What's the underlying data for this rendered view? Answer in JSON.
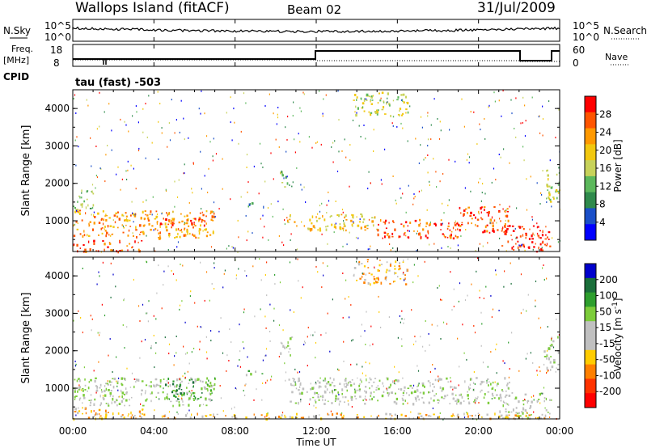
{
  "header": {
    "site": "Wallops Island (fitACF)",
    "beam": "Beam 02",
    "date": "31/Jul/2009"
  },
  "sky_panel": {
    "left_label": "N.Sky",
    "left_ticks": [
      "10^5",
      "10^0"
    ],
    "right_ticks": [
      "10^5",
      "10^0"
    ],
    "right_label": "N.Search"
  },
  "freq_panel": {
    "left_label_1": "Freq.",
    "left_label_2": "[MHz]",
    "left_ticks": [
      "18",
      "8"
    ],
    "right_ticks": [
      "60",
      "0"
    ],
    "right_label": "Nave",
    "cpid_label": "CPID",
    "mode_label": "tau (fast) -503"
  },
  "colors": {
    "power": [
      "#0000ff",
      "#1a4fc8",
      "#2f8a4c",
      "#5cb85c",
      "#c7d25a",
      "#f2c80f",
      "#ff9900",
      "#ff5500",
      "#ff0000"
    ],
    "velocity": [
      "#0000cc",
      "#1a6e3a",
      "#2d9e2d",
      "#7ccc3a",
      "#c0c0c0",
      "#c0c0c0",
      "#ffcc00",
      "#ff8000",
      "#ff3300",
      "#ff0000"
    ]
  },
  "chart_data": [
    {
      "type": "heatmap",
      "name": "power",
      "ylabel": "Slant Range [km]",
      "ylim": [
        180,
        4500
      ],
      "yticks": [
        "1000",
        "2000",
        "3000",
        "4000"
      ],
      "xlim_hours": [
        0,
        24
      ],
      "colorbar_label": "Power [dB]",
      "colorbar_ticks": [
        "28",
        "24",
        "20",
        "16",
        "12",
        "8",
        "4"
      ],
      "bands": [
        {
          "t0": 0.0,
          "t1": 7.0,
          "r0": 550,
          "r1": 1300,
          "level": 6
        },
        {
          "t0": 0.0,
          "t1": 3.5,
          "r0": 200,
          "r1": 500,
          "level": 7
        },
        {
          "t0": 0.0,
          "t1": 1.0,
          "r0": 1300,
          "r1": 1900,
          "level": 3
        },
        {
          "t0": 3.5,
          "t1": 6.5,
          "r0": 900,
          "r1": 1100,
          "level": 7
        },
        {
          "t0": 8.5,
          "t1": 9.5,
          "r0": 1350,
          "r1": 1500,
          "level": 2
        },
        {
          "t0": 10.2,
          "t1": 10.8,
          "r0": 1900,
          "r1": 2400,
          "level": 3
        },
        {
          "t0": 10.5,
          "t1": 15.0,
          "r0": 750,
          "r1": 1200,
          "level": 5
        },
        {
          "t0": 15.0,
          "t1": 19.0,
          "r0": 550,
          "r1": 1050,
          "level": 7
        },
        {
          "t0": 19.0,
          "t1": 21.5,
          "r0": 700,
          "r1": 1400,
          "level": 7
        },
        {
          "t0": 21.0,
          "t1": 23.5,
          "r0": 200,
          "r1": 900,
          "level": 8
        },
        {
          "t0": 23.2,
          "t1": 24.0,
          "r0": 1500,
          "r1": 2400,
          "level": 4
        },
        {
          "t0": 13.8,
          "t1": 16.5,
          "r0": 3800,
          "r1": 4450,
          "level": 4
        }
      ]
    },
    {
      "type": "heatmap",
      "name": "velocity",
      "ylabel": "Slant Range [km]",
      "ylim": [
        180,
        4500
      ],
      "yticks": [
        "1000",
        "2000",
        "3000",
        "4000"
      ],
      "xlabel": "Time UT",
      "xticks": [
        "00:00",
        "04:00",
        "08:00",
        "12:00",
        "16:00",
        "20:00",
        "00:00"
      ],
      "xlim_hours": [
        0,
        24
      ],
      "colorbar_label": "Velocity [m s^-1]",
      "colorbar_ticks": [
        "200",
        "100",
        "50",
        "15",
        "-15",
        "-50",
        "-100",
        "-200"
      ],
      "bands": [
        {
          "t0": 0.0,
          "t1": 7.0,
          "r0": 550,
          "r1": 1300,
          "level": 4
        },
        {
          "t0": 0.0,
          "t1": 3.5,
          "r0": 200,
          "r1": 500,
          "level": 6
        },
        {
          "t0": 4.5,
          "t1": 7.0,
          "r0": 700,
          "r1": 1300,
          "level": 2
        },
        {
          "t0": 8.5,
          "t1": 9.5,
          "r0": 1350,
          "r1": 1500,
          "level": 3
        },
        {
          "t0": 10.2,
          "t1": 10.8,
          "r0": 1900,
          "r1": 2400,
          "level": 4
        },
        {
          "t0": 10.5,
          "t1": 21.5,
          "r0": 600,
          "r1": 1300,
          "level": 4
        },
        {
          "t0": 21.0,
          "t1": 23.5,
          "r0": 200,
          "r1": 900,
          "level": 4
        },
        {
          "t0": 23.2,
          "t1": 24.0,
          "r0": 1500,
          "r1": 2400,
          "level": 4
        },
        {
          "t0": 3.0,
          "t1": 23.5,
          "r0": 200,
          "r1": 350,
          "level": 6
        },
        {
          "t0": 13.8,
          "t1": 16.5,
          "r0": 3800,
          "r1": 4450,
          "level": 6
        }
      ]
    }
  ]
}
